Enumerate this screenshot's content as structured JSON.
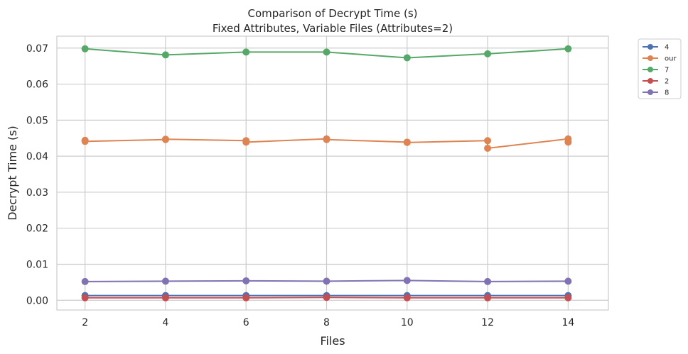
{
  "chart_data": {
    "type": "line",
    "title": "Comparison of Decrypt Time (s)",
    "subtitle": "Fixed Attributes, Variable Files (Attributes=2)",
    "xlabel": "Files",
    "ylabel": "Decrypt Time (s)",
    "x": [
      2,
      4,
      6,
      8,
      10,
      12,
      14
    ],
    "xticks": [
      "2",
      "4",
      "6",
      "8",
      "10",
      "12",
      "14"
    ],
    "xlim": [
      1.3,
      15.0
    ],
    "yticks": [
      "0.00",
      "0.01",
      "0.02",
      "0.03",
      "0.04",
      "0.05",
      "0.06",
      "0.07"
    ],
    "ylim": [
      -0.0027,
      0.0733
    ],
    "grid": true,
    "legend_placement": "outside-top-right",
    "series": [
      {
        "name": "4",
        "color": "#4c72b0",
        "points": [
          [
            2,
            0.0013
          ],
          [
            4,
            0.0013
          ],
          [
            6,
            0.0013
          ],
          [
            8,
            0.0013
          ],
          [
            10,
            0.0013
          ],
          [
            12,
            0.0013
          ],
          [
            14,
            0.0013
          ]
        ]
      },
      {
        "name": "our",
        "color": "#dd8452",
        "points": [
          [
            2,
            0.0444
          ],
          [
            2,
            0.0441
          ],
          [
            4,
            0.0446
          ],
          [
            4,
            0.0447
          ],
          [
            6,
            0.0443
          ],
          [
            6,
            0.0439
          ],
          [
            8,
            0.0448
          ],
          [
            8,
            0.0446
          ],
          [
            10,
            0.0439
          ],
          [
            10,
            0.0438
          ],
          [
            12,
            0.0443
          ],
          [
            12,
            0.0422
          ],
          [
            14,
            0.0448
          ],
          [
            14,
            0.0439
          ]
        ]
      },
      {
        "name": "7",
        "color": "#55a868",
        "points": [
          [
            2,
            0.0698
          ],
          [
            4,
            0.0681
          ],
          [
            6,
            0.0689
          ],
          [
            8,
            0.0689
          ],
          [
            10,
            0.0673
          ],
          [
            12,
            0.0684
          ],
          [
            14,
            0.0698
          ]
        ]
      },
      {
        "name": "2",
        "color": "#c44e52",
        "points": [
          [
            2,
            0.0007
          ],
          [
            4,
            0.0007
          ],
          [
            6,
            0.0007
          ],
          [
            8,
            0.0008
          ],
          [
            10,
            0.0007
          ],
          [
            12,
            0.0007
          ],
          [
            14,
            0.0007
          ]
        ]
      },
      {
        "name": "8",
        "color": "#8172b3",
        "points": [
          [
            2,
            0.0052
          ],
          [
            4,
            0.0053
          ],
          [
            6,
            0.0054
          ],
          [
            8,
            0.0053
          ],
          [
            10,
            0.0055
          ],
          [
            12,
            0.0052
          ],
          [
            14,
            0.0053
          ]
        ]
      }
    ]
  }
}
